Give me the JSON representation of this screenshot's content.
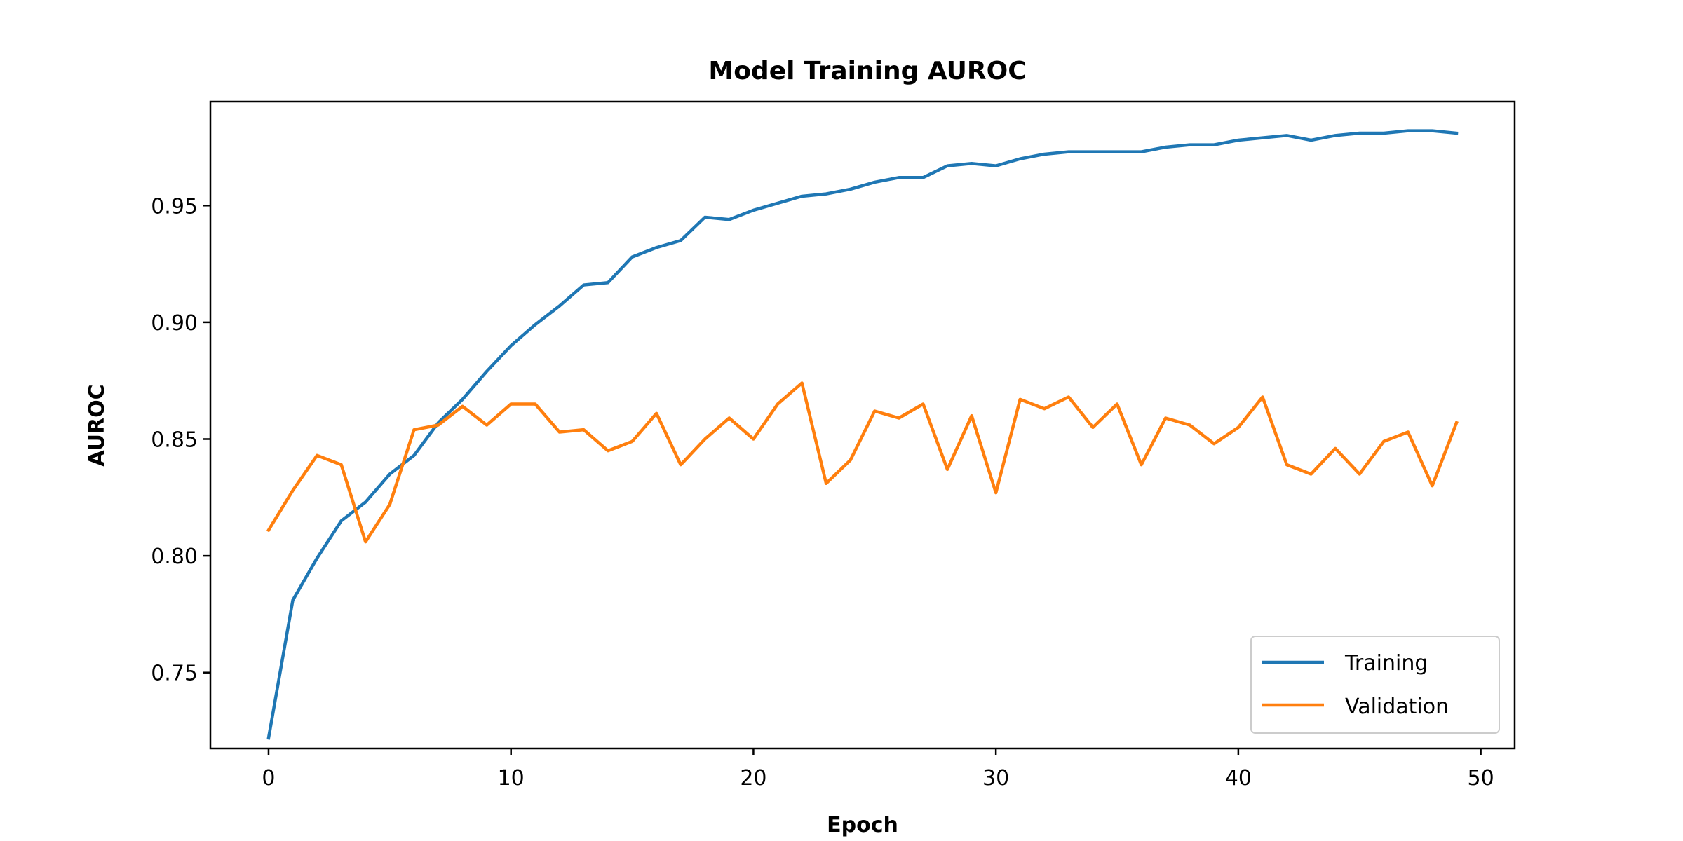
{
  "chart_data": {
    "type": "line",
    "title": "Model Training AUROC",
    "xlabel": "Epoch",
    "ylabel": "AUROC",
    "xlim": [
      -2.4,
      51.4
    ],
    "ylim": [
      0.7175,
      0.9945
    ],
    "xticks": [
      0,
      10,
      20,
      30,
      40,
      50
    ],
    "xtick_labels": [
      "0",
      "10",
      "20",
      "30",
      "40",
      "50"
    ],
    "yticks": [
      0.75,
      0.8,
      0.85,
      0.9,
      0.95
    ],
    "ytick_labels": [
      "0.75",
      "0.80",
      "0.85",
      "0.90",
      "0.95"
    ],
    "grid": false,
    "legend_position": "lower-right",
    "x": [
      0,
      1,
      2,
      3,
      4,
      5,
      6,
      7,
      8,
      9,
      10,
      11,
      12,
      13,
      14,
      15,
      16,
      17,
      18,
      19,
      20,
      21,
      22,
      23,
      24,
      25,
      26,
      27,
      28,
      29,
      30,
      31,
      32,
      33,
      34,
      35,
      36,
      37,
      38,
      39,
      40,
      41,
      42,
      43,
      44,
      45,
      46,
      47,
      48,
      49
    ],
    "series": [
      {
        "name": "Training",
        "color": "#1f77b4",
        "values": [
          0.722,
          0.781,
          0.799,
          0.815,
          0.823,
          0.835,
          0.843,
          0.857,
          0.867,
          0.879,
          0.89,
          0.899,
          0.907,
          0.916,
          0.917,
          0.928,
          0.932,
          0.935,
          0.945,
          0.944,
          0.948,
          0.951,
          0.954,
          0.955,
          0.957,
          0.96,
          0.962,
          0.962,
          0.967,
          0.968,
          0.967,
          0.97,
          0.972,
          0.973,
          0.973,
          0.973,
          0.973,
          0.975,
          0.976,
          0.976,
          0.978,
          0.979,
          0.98,
          0.978,
          0.98,
          0.981,
          0.981,
          0.982,
          0.982,
          0.981
        ]
      },
      {
        "name": "Validation",
        "color": "#ff7f0e",
        "values": [
          0.811,
          0.828,
          0.843,
          0.839,
          0.806,
          0.822,
          0.854,
          0.856,
          0.864,
          0.856,
          0.865,
          0.865,
          0.853,
          0.854,
          0.845,
          0.849,
          0.861,
          0.839,
          0.85,
          0.859,
          0.85,
          0.865,
          0.874,
          0.831,
          0.841,
          0.862,
          0.859,
          0.865,
          0.837,
          0.86,
          0.827,
          0.867,
          0.863,
          0.868,
          0.855,
          0.865,
          0.839,
          0.859,
          0.856,
          0.848,
          0.855,
          0.868,
          0.839,
          0.835,
          0.846,
          0.835,
          0.849,
          0.853,
          0.83,
          0.857
        ]
      }
    ]
  }
}
